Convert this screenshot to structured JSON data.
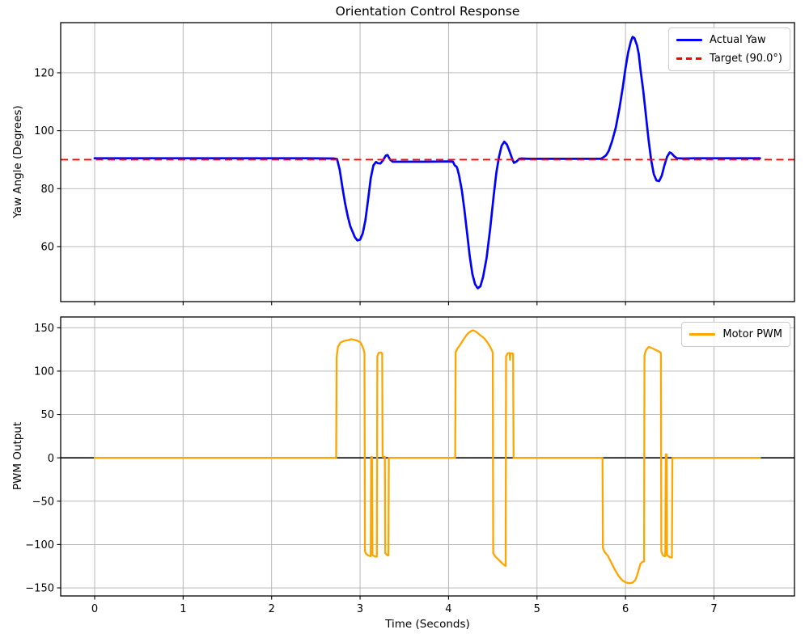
{
  "figure": {
    "background": "#ffffff",
    "grid_color": "#b0b0b0",
    "spine_color": "#000000"
  },
  "chart_data": [
    {
      "type": "line",
      "title": "Orientation Control Response",
      "ylabel": "Yaw Angle (Degrees)",
      "xlabel": "",
      "xlim": [
        -0.384,
        7.91
      ],
      "ylim": [
        41.0,
        137.3
      ],
      "xticks": [
        0,
        1,
        2,
        3,
        4,
        5,
        6,
        7
      ],
      "yticks": [
        60,
        80,
        100,
        120
      ],
      "show_x_tick_labels": false,
      "grid": true,
      "legend_position": "upper right",
      "target_line": {
        "label": "Target (90.0°)",
        "value": 90.0,
        "color": "#ff0000",
        "style": "dashed",
        "width": 1.9
      },
      "series": [
        {
          "name": "Actual Yaw",
          "color": "#0000ff",
          "width": 2.7,
          "points": [
            [
              0,
              90.5
            ],
            [
              0.4,
              90.5
            ],
            [
              0.8,
              90.5
            ],
            [
              1.2,
              90.5
            ],
            [
              1.6,
              90.5
            ],
            [
              2.0,
              90.5
            ],
            [
              2.4,
              90.5
            ],
            [
              2.7,
              90.4
            ],
            [
              2.74,
              90.2
            ],
            [
              2.77,
              86.5
            ],
            [
              2.8,
              80.5
            ],
            [
              2.83,
              75
            ],
            [
              2.86,
              70.5
            ],
            [
              2.89,
              67
            ],
            [
              2.92,
              64.8
            ],
            [
              2.94,
              63.3
            ],
            [
              2.97,
              62.1
            ],
            [
              3.0,
              62.4
            ],
            [
              3.03,
              64.5
            ],
            [
              3.06,
              69
            ],
            [
              3.09,
              76
            ],
            [
              3.12,
              83.5
            ],
            [
              3.15,
              88
            ],
            [
              3.18,
              89.2
            ],
            [
              3.2,
              88.8
            ],
            [
              3.23,
              88.7
            ],
            [
              3.26,
              89.8
            ],
            [
              3.29,
              91.4
            ],
            [
              3.31,
              91.6
            ],
            [
              3.34,
              90
            ],
            [
              3.37,
              89.3
            ],
            [
              3.5,
              89.3
            ],
            [
              3.75,
              89.3
            ],
            [
              4.0,
              89.4
            ],
            [
              4.05,
              89.3
            ],
            [
              4.07,
              88
            ],
            [
              4.09,
              87.6
            ],
            [
              4.1,
              86.8
            ],
            [
              4.12,
              84.5
            ],
            [
              4.15,
              79.5
            ],
            [
              4.18,
              72.5
            ],
            [
              4.21,
              64.5
            ],
            [
              4.24,
              56.5
            ],
            [
              4.27,
              50.5
            ],
            [
              4.3,
              47
            ],
            [
              4.33,
              45.6
            ],
            [
              4.36,
              46.3
            ],
            [
              4.39,
              49.5
            ],
            [
              4.43,
              56
            ],
            [
              4.47,
              66
            ],
            [
              4.51,
              77.5
            ],
            [
              4.54,
              85.5
            ],
            [
              4.57,
              91
            ],
            [
              4.6,
              94.8
            ],
            [
              4.63,
              96.2
            ],
            [
              4.66,
              95.2
            ],
            [
              4.69,
              92.8
            ],
            [
              4.72,
              90.2
            ],
            [
              4.74,
              88.9
            ],
            [
              4.77,
              89.4
            ],
            [
              4.8,
              90.3
            ],
            [
              4.83,
              90.4
            ],
            [
              4.9,
              90.3
            ],
            [
              5.2,
              90.3
            ],
            [
              5.5,
              90.3
            ],
            [
              5.72,
              90.3
            ],
            [
              5.75,
              90.8
            ],
            [
              5.78,
              91.5
            ],
            [
              5.81,
              93
            ],
            [
              5.85,
              96.5
            ],
            [
              5.89,
              101
            ],
            [
              5.93,
              107.5
            ],
            [
              5.97,
              115
            ],
            [
              6.0,
              121.5
            ],
            [
              6.03,
              127
            ],
            [
              6.06,
              130.8
            ],
            [
              6.08,
              132.4
            ],
            [
              6.1,
              132
            ],
            [
              6.13,
              129.5
            ],
            [
              6.15,
              126.5
            ],
            [
              6.17,
              121
            ],
            [
              6.2,
              114
            ],
            [
              6.23,
              105.5
            ],
            [
              6.26,
              97
            ],
            [
              6.29,
              90
            ],
            [
              6.32,
              85
            ],
            [
              6.35,
              82.8
            ],
            [
              6.38,
              82.6
            ],
            [
              6.41,
              84.5
            ],
            [
              6.44,
              88
            ],
            [
              6.47,
              91
            ],
            [
              6.5,
              92.5
            ],
            [
              6.52,
              92.2
            ],
            [
              6.55,
              91.2
            ],
            [
              6.58,
              90.5
            ],
            [
              6.65,
              90.4
            ],
            [
              6.8,
              90.5
            ],
            [
              7.1,
              90.5
            ],
            [
              7.3,
              90.5
            ],
            [
              7.52,
              90.5
            ]
          ]
        }
      ]
    },
    {
      "type": "line",
      "title": "",
      "ylabel": "PWM Output",
      "xlabel": "Time (Seconds)",
      "xlim": [
        -0.384,
        7.91
      ],
      "ylim": [
        -159.3,
        162.4
      ],
      "xticks": [
        0,
        1,
        2,
        3,
        4,
        5,
        6,
        7
      ],
      "yticks": [
        -150,
        -100,
        -50,
        0,
        50,
        100,
        150
      ],
      "show_x_tick_labels": true,
      "grid": true,
      "legend_position": "upper right",
      "zero_line": {
        "value": 0,
        "color": "#000000",
        "width": 1.6
      },
      "series": [
        {
          "name": "Motor PWM",
          "color": "#ffa500",
          "width": 2.3,
          "points": [
            [
              0,
              0
            ],
            [
              0.5,
              0
            ],
            [
              1.0,
              0
            ],
            [
              1.5,
              0
            ],
            [
              2.0,
              0
            ],
            [
              2.4,
              0
            ],
            [
              2.73,
              0
            ],
            [
              2.735,
              116
            ],
            [
              2.75,
              128
            ],
            [
              2.78,
              133
            ],
            [
              2.82,
              134.8
            ],
            [
              2.86,
              135.5
            ],
            [
              2.9,
              136.8
            ],
            [
              2.93,
              136.2
            ],
            [
              2.97,
              135
            ],
            [
              3.0,
              133.5
            ],
            [
              3.02,
              130
            ],
            [
              3.04,
              125
            ],
            [
              3.05,
              121
            ],
            [
              3.055,
              -108
            ],
            [
              3.07,
              -111
            ],
            [
              3.1,
              -113
            ],
            [
              3.12,
              -113.5
            ],
            [
              3.125,
              1
            ],
            [
              3.135,
              1
            ],
            [
              3.14,
              -112
            ],
            [
              3.17,
              -114
            ],
            [
              3.19,
              -114
            ],
            [
              3.195,
              117
            ],
            [
              3.21,
              121
            ],
            [
              3.24,
              121.5
            ],
            [
              3.25,
              120
            ],
            [
              3.255,
              1
            ],
            [
              3.28,
              1
            ],
            [
              3.285,
              -110
            ],
            [
              3.31,
              -112.5
            ],
            [
              3.32,
              -112.5
            ],
            [
              3.325,
              0
            ],
            [
              3.6,
              0
            ],
            [
              3.9,
              0
            ],
            [
              4.05,
              0
            ],
            [
              4.075,
              0
            ],
            [
              4.08,
              122
            ],
            [
              4.1,
              126
            ],
            [
              4.13,
              130
            ],
            [
              4.16,
              135
            ],
            [
              4.2,
              141
            ],
            [
              4.23,
              144.5
            ],
            [
              4.26,
              146.5
            ],
            [
              4.28,
              147
            ],
            [
              4.31,
              145.5
            ],
            [
              4.34,
              143
            ],
            [
              4.36,
              141
            ],
            [
              4.38,
              139.8
            ],
            [
              4.41,
              137
            ],
            [
              4.44,
              133
            ],
            [
              4.47,
              128
            ],
            [
              4.49,
              124
            ],
            [
              4.5,
              121
            ],
            [
              4.505,
              -110
            ],
            [
              4.53,
              -114
            ],
            [
              4.57,
              -118
            ],
            [
              4.61,
              -122
            ],
            [
              4.64,
              -124.5
            ],
            [
              4.645,
              -124.5
            ],
            [
              4.65,
              117
            ],
            [
              4.67,
              120.5
            ],
            [
              4.69,
              121
            ],
            [
              4.695,
              113
            ],
            [
              4.7,
              120
            ],
            [
              4.72,
              120.5
            ],
            [
              4.73,
              120
            ],
            [
              4.735,
              0
            ],
            [
              4.9,
              0
            ],
            [
              5.2,
              0
            ],
            [
              5.5,
              0
            ],
            [
              5.74,
              0
            ],
            [
              5.745,
              -104
            ],
            [
              5.76,
              -108
            ],
            [
              5.8,
              -113
            ],
            [
              5.84,
              -121
            ],
            [
              5.88,
              -129
            ],
            [
              5.92,
              -136
            ],
            [
              5.96,
              -141
            ],
            [
              6.0,
              -143.5
            ],
            [
              6.04,
              -144.6
            ],
            [
              6.08,
              -144
            ],
            [
              6.11,
              -141
            ],
            [
              6.13,
              -136
            ],
            [
              6.15,
              -129
            ],
            [
              6.17,
              -122
            ],
            [
              6.19,
              -120
            ],
            [
              6.21,
              -119.5
            ],
            [
              6.215,
              118
            ],
            [
              6.23,
              124
            ],
            [
              6.26,
              127.8
            ],
            [
              6.29,
              127
            ],
            [
              6.32,
              125.5
            ],
            [
              6.35,
              124
            ],
            [
              6.38,
              122.5
            ],
            [
              6.4,
              121
            ],
            [
              6.405,
              -108
            ],
            [
              6.42,
              -112
            ],
            [
              6.44,
              -113.5
            ],
            [
              6.45,
              -113.5
            ],
            [
              6.455,
              4
            ],
            [
              6.465,
              4
            ],
            [
              6.47,
              -112
            ],
            [
              6.5,
              -114.5
            ],
            [
              6.52,
              -115
            ],
            [
              6.525,
              -115
            ],
            [
              6.53,
              0
            ],
            [
              6.7,
              0
            ],
            [
              7.0,
              0
            ],
            [
              7.3,
              0
            ],
            [
              7.52,
              0
            ]
          ]
        }
      ]
    }
  ]
}
